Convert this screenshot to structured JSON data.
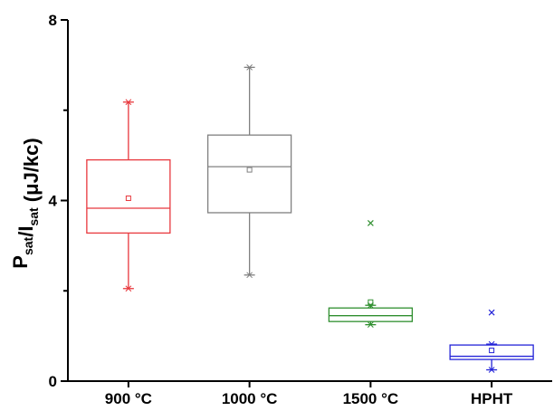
{
  "chart_data": {
    "type": "box",
    "title": "",
    "xlabel": "",
    "ylabel": {
      "parts": [
        {
          "text": "P",
          "sub": "sat"
        },
        {
          "text": "/I",
          "sub": "sat"
        },
        {
          "text": " (μJ/kc)",
          "sub": ""
        }
      ]
    },
    "ylim": [
      0,
      8
    ],
    "yticks": [
      {
        "value": 0,
        "label": "0"
      },
      {
        "value": 4,
        "label": "4"
      },
      {
        "value": 8,
        "label": "8"
      }
    ],
    "grid": false,
    "categories": [
      "900 °C",
      "1000 °C",
      "1500 °C",
      "HPHT"
    ],
    "series": [
      {
        "category": "900 °C",
        "color": "#e8383d",
        "min": 2.05,
        "q1": 3.28,
        "median": 3.83,
        "q3": 4.9,
        "max": 6.18,
        "mean": 4.05,
        "outliers": []
      },
      {
        "category": "1000 °C",
        "color": "#808080",
        "min": 2.35,
        "q1": 3.73,
        "median": 4.75,
        "q3": 5.45,
        "max": 6.95,
        "mean": 4.68,
        "outliers": []
      },
      {
        "category": "1500 °C",
        "color": "#2f8f2f",
        "min": 1.25,
        "q1": 1.32,
        "median": 1.45,
        "q3": 1.62,
        "max": 1.68,
        "mean": 1.75,
        "outliers": [
          3.5
        ]
      },
      {
        "category": "HPHT",
        "color": "#2424d8",
        "min": 0.25,
        "q1": 0.48,
        "median": 0.55,
        "q3": 0.8,
        "max": 0.82,
        "mean": 0.68,
        "outliers": [
          1.52
        ]
      }
    ]
  }
}
